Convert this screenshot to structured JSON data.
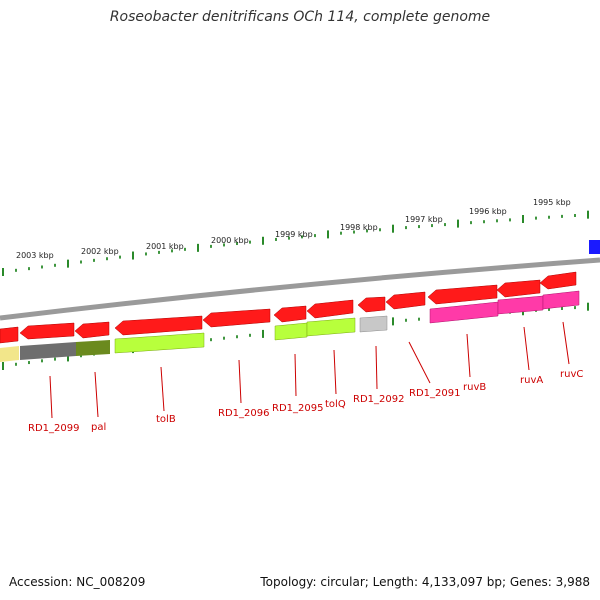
{
  "title": "Roseobacter denitrificans OCh 114, complete genome",
  "footer": {
    "accession": "Accession: NC_008209",
    "summary": "Topology: circular; Length: 4,133,097 bp; Genes: 3,988"
  },
  "kbp_labels": [
    "2003 kbp",
    "2002 kbp",
    "2001 kbp",
    "2000 kbp",
    "1999 kbp",
    "1998 kbp",
    "1997 kbp",
    "1996 kbp",
    "1995 kbp"
  ],
  "gene_labels": [
    "RD1_2099",
    "pal",
    "tolB",
    "RD1_2096",
    "RD1_2095",
    "tolQ",
    "RD1_2092",
    "RD1_2091",
    "ruvB",
    "ruvA",
    "ruvC"
  ],
  "colors": {
    "cds": "#ff1a1a",
    "backbone": "#8c8c8c",
    "label": "#cc0000",
    "tick": "#2a8a2a"
  }
}
